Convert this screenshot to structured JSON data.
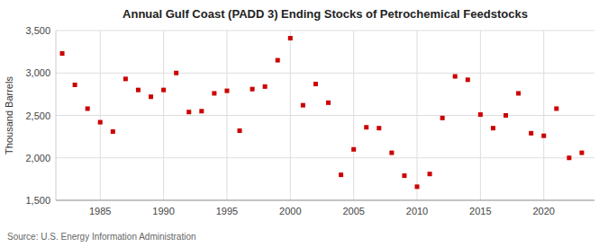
{
  "chart_data": {
    "type": "scatter",
    "title": "Annual Gulf Coast (PADD 3) Ending Stocks of Petrochemical Feedstocks",
    "ylabel": "Thousand Barrels",
    "source": "Source: U.S. Energy Information Administration",
    "x": [
      1982,
      1983,
      1984,
      1985,
      1986,
      1987,
      1988,
      1989,
      1990,
      1991,
      1992,
      1993,
      1994,
      1995,
      1996,
      1997,
      1998,
      1999,
      2000,
      2001,
      2002,
      2003,
      2004,
      2005,
      2006,
      2007,
      2008,
      2009,
      2010,
      2011,
      2012,
      2013,
      2014,
      2015,
      2016,
      2017,
      2018,
      2019,
      2020,
      2021,
      2022,
      2023
    ],
    "values": [
      3230,
      2860,
      2580,
      2420,
      2310,
      2930,
      2800,
      2720,
      2800,
      3000,
      2540,
      2550,
      2760,
      2790,
      2320,
      2810,
      2840,
      3150,
      3410,
      2620,
      2870,
      2650,
      1800,
      2100,
      2360,
      2350,
      2060,
      1790,
      1660,
      1810,
      2470,
      2960,
      2920,
      2510,
      2350,
      2500,
      2760,
      2290,
      2260,
      2580,
      2000,
      2060
    ],
    "color": "#cc0000",
    "marker": "square",
    "xlim": [
      1981.5,
      2024
    ],
    "xticks": [
      1985,
      1990,
      1995,
      2000,
      2005,
      2010,
      2015,
      2020
    ],
    "ylim": [
      1500,
      3500
    ],
    "yticks": [
      {
        "value": 1500,
        "label": "1,500"
      },
      {
        "value": 2000,
        "label": "2,000"
      },
      {
        "value": 2500,
        "label": "2,500"
      },
      {
        "value": 3000,
        "label": "3,000"
      },
      {
        "value": 3500,
        "label": "3,500"
      }
    ],
    "grid": true
  }
}
